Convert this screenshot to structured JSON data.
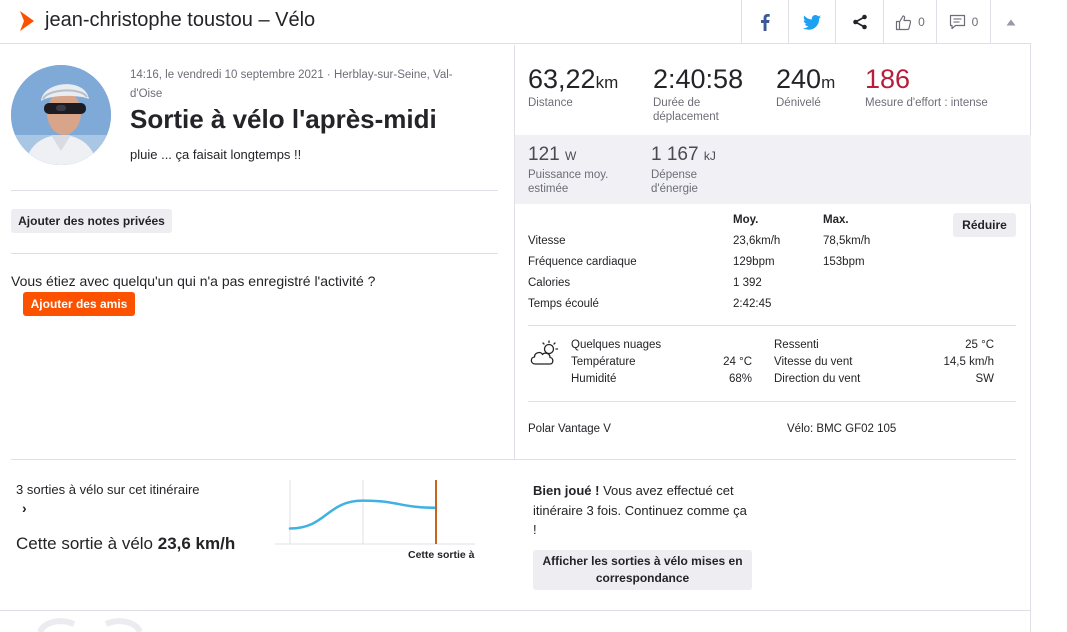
{
  "header": {
    "title": "jean-christophe toustou – Vélo",
    "kudos_count": "0",
    "comments_count": "0"
  },
  "activity": {
    "meta": "14:16, le vendredi 10 septembre 2021 · Herblay-sur-Seine, Val-d'Oise",
    "title": "Sortie à vélo l'après-midi",
    "description": "pluie ... ça faisait longtemps !!"
  },
  "private_notes_button": "Ajouter des notes privées",
  "friends": {
    "prompt": "Vous étiez avec quelqu'un qui n'a pas enregistré l'activité ?",
    "button": "Ajouter des amis"
  },
  "stats_primary": [
    {
      "value": "63,22",
      "unit": "km",
      "label": "Distance"
    },
    {
      "value": "2:40:58",
      "unit": "",
      "label": "Durée de déplacement"
    },
    {
      "value": "240",
      "unit": "m",
      "label": "Dénivelé"
    },
    {
      "value": "186",
      "unit": "",
      "label": "Mesure d'effort : intense"
    }
  ],
  "stats_secondary": [
    {
      "value": "121",
      "unit": "W",
      "label": "Puissance moy. estimée"
    },
    {
      "value": "1 167",
      "unit": "kJ",
      "label": "Dépense d'énergie"
    }
  ],
  "details": {
    "col_avg": "Moy.",
    "col_max": "Max.",
    "collapse_button": "Réduire",
    "rows": [
      {
        "label": "Vitesse",
        "avg": "23,6km/h",
        "max": "78,5km/h"
      },
      {
        "label": "Fréquence cardiaque",
        "avg": "129bpm",
        "max": "153bpm"
      },
      {
        "label": "Calories",
        "avg": "1 392",
        "max": ""
      },
      {
        "label": "Temps écoulé",
        "avg": "2:42:45",
        "max": ""
      }
    ]
  },
  "weather": {
    "condition": "Quelques nuages",
    "temp_label": "Température",
    "temp_value": "24 °C",
    "humidity_label": "Humidité",
    "humidity_value": "68%",
    "feels_label": "Ressenti",
    "feels_value": "25 °C",
    "wind_speed_label": "Vitesse du vent",
    "wind_speed_value": "14,5 km/h",
    "wind_dir_label": "Direction du vent",
    "wind_dir_value": "SW"
  },
  "device": "Polar Vantage V",
  "bike": "Vélo: BMC GF02 105",
  "comparison": {
    "link_text": "3 sorties à vélo sur cet itinéraire",
    "arrow": "›",
    "speed_prefix": "Cette sortie à vélo",
    "speed_value": "23,6 km/h",
    "chart_label": "Cette sortie à",
    "speeds": [
      20.5,
      23.2,
      22.5
    ]
  },
  "kudos": {
    "bold": "Bien joué !",
    "text": " Vous avez effectué cet itinéraire 3 fois. Continuez comme ça !",
    "button": "Afficher les sorties à vélo mises en correspondance"
  },
  "colors": {
    "brand": "#fc5200",
    "effort": "#b81d3a",
    "chart_line": "#3fb1e3"
  }
}
